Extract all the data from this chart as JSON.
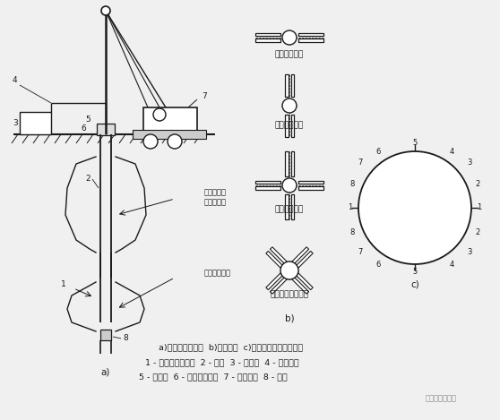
{
  "bg_color": "#f0f0f0",
  "caption_line1": "a)成形设备布置图  b)分支形式  c)整体断面及挤扩转位图",
  "caption_line2": "1 - 支盘成形机主机  2 - 桩孔  3 - 液压站  4 - 液压胶管",
  "caption_line3": "5 - 接长杆  6 - 旋转定位装置  7 - 起重设备  8 - 工篓",
  "watermark": "逆作法工程中心",
  "lc": "#1a1a1a",
  "tc": "#1a1a1a",
  "ann_text1a": "已挤扩成形",
  "ann_text1b": "的分支空腔",
  "ann_text2": "正在挤扩成形",
  "b_labels": [
    "横向一字分支",
    "纵向一字分支",
    "对称十字分支",
    "错位对称十字分支"
  ],
  "label_a": "a)",
  "label_b": "b)",
  "label_c": "c)"
}
